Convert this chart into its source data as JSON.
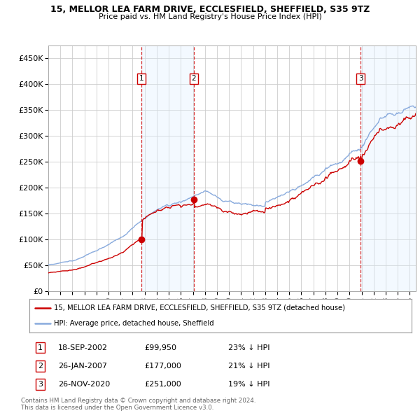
{
  "title": "15, MELLOR LEA FARM DRIVE, ECCLESFIELD, SHEFFIELD, S35 9TZ",
  "subtitle": "Price paid vs. HM Land Registry's House Price Index (HPI)",
  "xlim_start": 1995.0,
  "xlim_end": 2025.5,
  "ylim": [
    0,
    475000
  ],
  "yticks": [
    0,
    50000,
    100000,
    150000,
    200000,
    250000,
    300000,
    350000,
    400000,
    450000
  ],
  "ytick_labels": [
    "£0",
    "£50K",
    "£100K",
    "£150K",
    "£200K",
    "£250K",
    "£300K",
    "£350K",
    "£400K",
    "£450K"
  ],
  "xticks": [
    1995,
    1996,
    1997,
    1998,
    1999,
    2000,
    2001,
    2002,
    2003,
    2004,
    2005,
    2006,
    2007,
    2008,
    2009,
    2010,
    2011,
    2012,
    2013,
    2014,
    2015,
    2016,
    2017,
    2018,
    2019,
    2020,
    2021,
    2022,
    2023,
    2024,
    2025
  ],
  "sale_dates": [
    2002.72,
    2007.07,
    2020.92
  ],
  "sale_prices": [
    99950,
    177000,
    251000
  ],
  "sale_labels": [
    "1",
    "2",
    "3"
  ],
  "sale_info": [
    {
      "label": "1",
      "date": "18-SEP-2002",
      "price": "£99,950",
      "hpi": "23% ↓ HPI"
    },
    {
      "label": "2",
      "date": "26-JAN-2007",
      "price": "£177,000",
      "hpi": "21% ↓ HPI"
    },
    {
      "label": "3",
      "date": "26-NOV-2020",
      "price": "£251,000",
      "hpi": "19% ↓ HPI"
    }
  ],
  "legend_property_label": "15, MELLOR LEA FARM DRIVE, ECCLESFIELD, SHEFFIELD, S35 9TZ (detached house)",
  "legend_hpi_label": "HPI: Average price, detached house, Sheffield",
  "property_color": "#cc0000",
  "hpi_color": "#88aadd",
  "hpi_fill_color": "#ddeeff",
  "grid_color": "#cccccc",
  "vline_color": "#cc0000",
  "box_color": "#cc0000",
  "footnote": "Contains HM Land Registry data © Crown copyright and database right 2024.\nThis data is licensed under the Open Government Licence v3.0.",
  "background_color": "#ffffff"
}
